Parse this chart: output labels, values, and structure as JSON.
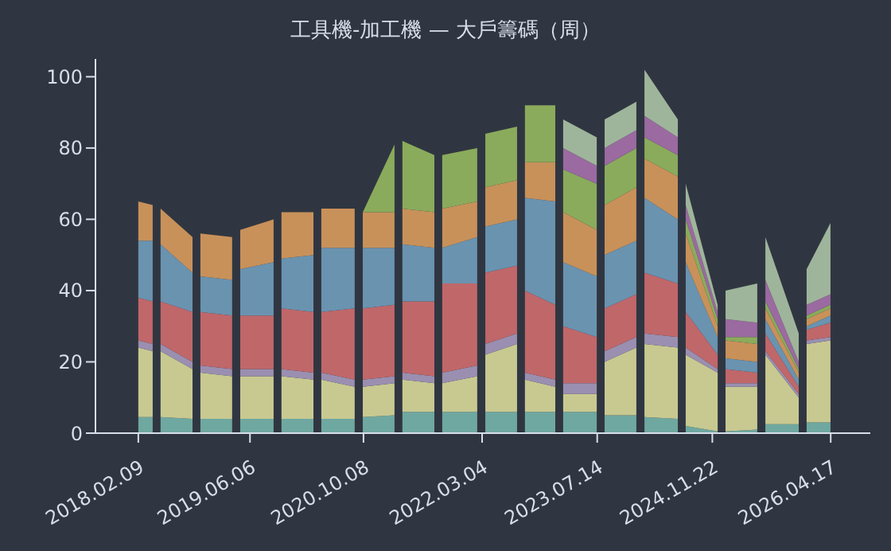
{
  "chart_data": {
    "type": "area",
    "stacked": true,
    "title": "工具機-加工機 — 大戶籌碼（周）",
    "x": [
      "2018-02-09",
      "2018-04-12",
      "2018-04-26",
      "2018-05-16",
      "2018-10-01",
      "2018-10-14",
      "2018-11-04",
      "2019-03-21",
      "2019-04-04",
      "2019-04-25",
      "2019-09-16",
      "2019-09-30",
      "2019-10-20",
      "2020-03-06",
      "2020-03-19",
      "2020-04-09",
      "2020-08-31",
      "2020-09-14",
      "2020-10-05",
      "2021-02-19",
      "2021-03-05",
      "2021-03-25",
      "2021-08-10",
      "2021-08-30",
      "2021-09-13",
      "2022-02-11",
      "2022-02-25",
      "2022-03-18",
      "2022-08-02",
      "2022-08-16",
      "2022-09-05",
      "2023-01-14",
      "2023-01-28",
      "2023-02-17",
      "2023-07-12",
      "2023-07-25",
      "2023-08-15",
      "2023-12-30",
      "2024-01-13",
      "2024-02-03",
      "2024-06-26",
      "2024-07-10",
      "2024-07-30",
      "2024-12-15",
      "2024-12-28",
      "2025-01-18",
      "2025-06-04",
      "2025-06-18",
      "2025-07-09",
      "2025-11-30",
      "2025-12-13",
      "2026-01-03",
      "2026-04-16"
    ],
    "series": [
      {
        "color": "#6fa8a0",
        "values": [
          4.5,
          4.5,
          null,
          4.5,
          4,
          null,
          4,
          4,
          null,
          4,
          4,
          null,
          4,
          4,
          null,
          4,
          4,
          null,
          4.5,
          5,
          null,
          6,
          6,
          null,
          6,
          6,
          null,
          6,
          6,
          null,
          6,
          6,
          null,
          6,
          6,
          null,
          5,
          5,
          null,
          4.5,
          4,
          null,
          2,
          0.5,
          null,
          0.5,
          1,
          null,
          2.5,
          2.5,
          null,
          3,
          3
        ]
      },
      {
        "color": "#c8c991",
        "values": [
          19.5,
          18.5,
          null,
          18.5,
          14,
          null,
          13,
          12,
          null,
          12,
          12,
          null,
          12,
          11,
          null,
          11,
          9,
          null,
          8.5,
          9,
          null,
          9,
          8,
          null,
          8,
          10,
          null,
          16,
          19,
          null,
          9,
          7,
          null,
          5,
          5,
          null,
          15,
          19,
          null,
          20.5,
          20,
          null,
          20,
          16.5,
          null,
          12.5,
          12,
          null,
          19.5,
          7.5,
          null,
          22,
          23
        ]
      },
      {
        "color": "#9a8fb0",
        "values": [
          2,
          2,
          null,
          2,
          2,
          null,
          2,
          2,
          null,
          2,
          2,
          null,
          2,
          2,
          null,
          2,
          2,
          null,
          2,
          2,
          null,
          2,
          2,
          null,
          3,
          3,
          null,
          3,
          3,
          null,
          2,
          2,
          null,
          3,
          3,
          null,
          3,
          3,
          null,
          3,
          3,
          null,
          2,
          1,
          null,
          1,
          1,
          null,
          1,
          1,
          null,
          1,
          1
        ]
      },
      {
        "color": "#c0676a",
        "values": [
          12,
          12,
          null,
          12,
          14,
          null,
          15,
          15,
          null,
          15,
          15,
          null,
          17,
          17,
          null,
          17,
          20,
          null,
          20,
          20,
          null,
          20,
          21,
          null,
          25,
          23,
          null,
          20,
          19,
          null,
          23,
          21,
          null,
          16,
          13,
          null,
          12,
          12,
          null,
          17,
          15,
          null,
          10,
          4,
          null,
          4,
          3,
          null,
          5,
          2,
          null,
          3,
          4
        ]
      },
      {
        "color": "#6a93b0",
        "values": [
          16,
          17,
          null,
          16,
          11,
          null,
          10,
          10,
          null,
          13,
          15,
          null,
          14,
          16,
          null,
          18,
          17,
          null,
          17,
          16,
          null,
          16,
          15,
          null,
          10,
          13,
          null,
          13,
          13,
          null,
          26,
          29,
          null,
          18,
          17,
          null,
          15,
          15,
          null,
          21,
          18,
          null,
          14,
          5,
          null,
          3,
          3,
          null,
          4,
          2,
          null,
          1,
          2
        ]
      },
      {
        "color": "#c8915a",
        "values": [
          11,
          10,
          null,
          10,
          10,
          null,
          12,
          12,
          null,
          11,
          12,
          null,
          13,
          12,
          null,
          11,
          11,
          null,
          10,
          10,
          null,
          10,
          10,
          null,
          11,
          10,
          null,
          11,
          11,
          null,
          10,
          11,
          null,
          14,
          13,
          null,
          14,
          15,
          null,
          11,
          12,
          null,
          8,
          3,
          null,
          5,
          5,
          null,
          3,
          2,
          null,
          2,
          2
        ]
      },
      {
        "color": "#8aab5c",
        "values": [
          null,
          null,
          null,
          null,
          null,
          null,
          null,
          null,
          null,
          null,
          null,
          null,
          null,
          null,
          null,
          null,
          null,
          null,
          0,
          19,
          null,
          19,
          16,
          null,
          15,
          15,
          null,
          15,
          15,
          null,
          16,
          16,
          null,
          12,
          13,
          null,
          11,
          11,
          null,
          6,
          6,
          null,
          4,
          2,
          null,
          1,
          2,
          null,
          2,
          1,
          null,
          1,
          1
        ]
      },
      {
        "color": "#9a6aa0",
        "values": [
          null,
          null,
          null,
          null,
          null,
          null,
          null,
          null,
          null,
          null,
          null,
          null,
          null,
          null,
          null,
          null,
          null,
          null,
          null,
          null,
          null,
          null,
          null,
          null,
          null,
          null,
          null,
          null,
          null,
          null,
          null,
          null,
          null,
          6,
          5,
          null,
          5,
          5,
          null,
          6,
          5,
          null,
          4,
          2,
          null,
          5,
          4,
          null,
          6,
          2,
          null,
          3,
          3
        ]
      },
      {
        "color": "#9fb59b",
        "values": [
          null,
          null,
          null,
          null,
          null,
          null,
          null,
          null,
          null,
          null,
          null,
          null,
          null,
          null,
          null,
          null,
          null,
          null,
          null,
          null,
          null,
          null,
          null,
          null,
          null,
          null,
          null,
          null,
          null,
          null,
          null,
          null,
          null,
          8,
          8,
          null,
          8,
          8,
          null,
          13,
          5,
          null,
          6,
          2,
          null,
          8,
          11,
          null,
          12,
          8,
          null,
          10,
          20
        ]
      }
    ],
    "xlim": [
      "2017-08-08",
      "2026-10-05"
    ],
    "xticks": [
      {
        "value": "2018-02-09",
        "label": "2018.02.09"
      },
      {
        "value": "2019-06-06",
        "label": "2019.06.06"
      },
      {
        "value": "2020-10-08",
        "label": "2020.10.08"
      },
      {
        "value": "2022-03-04",
        "label": "2022.03.04"
      },
      {
        "value": "2023-07-14",
        "label": "2023.07.14"
      },
      {
        "value": "2024-11-22",
        "label": "2024.11.22"
      },
      {
        "value": "2026-04-17",
        "label": "2026.04.17"
      }
    ],
    "ylim": [
      0,
      105
    ],
    "yticks": [
      0,
      20,
      40,
      60,
      80,
      100
    ],
    "grid": false,
    "legend": false
  }
}
